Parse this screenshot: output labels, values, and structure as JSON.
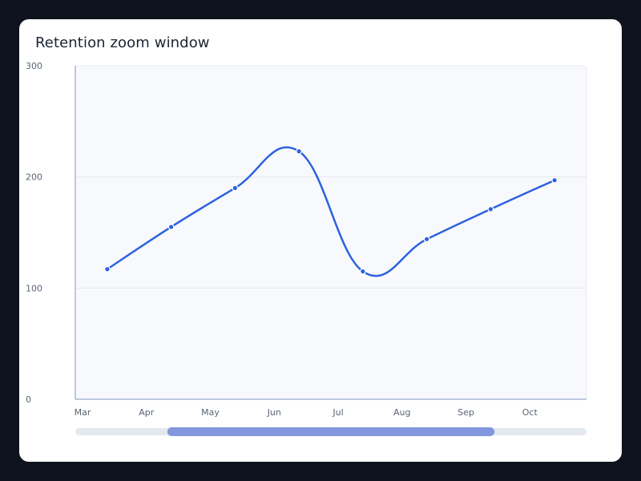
{
  "card": {
    "title": "Retention zoom window"
  },
  "chart_data": {
    "type": "line",
    "title": "Retention zoom window",
    "xlabel": "",
    "ylabel": "",
    "x_tick_labels": [
      "Mar",
      "Apr",
      "May",
      "Jun",
      "Jul",
      "Aug",
      "Sep",
      "Oct"
    ],
    "categories": [
      "Mar",
      "Apr",
      "May",
      "Jun",
      "Jul",
      "Aug",
      "Sep",
      "Oct"
    ],
    "series": [
      {
        "values": [
          117,
          155,
          190,
          223,
          115,
          144,
          171,
          197
        ]
      }
    ],
    "ylim": [
      0,
      300
    ],
    "y_ticks": [
      0,
      100,
      200,
      300
    ],
    "grid": true,
    "smooth": true,
    "zoom_window": {
      "start": 0.18,
      "end": 0.82
    },
    "colors": {
      "line": "#2c62de",
      "plot_bg": "#f8f9fc",
      "axis": "#a8b7d6",
      "grid": "#e5e8ef",
      "slider_track": "#e4e8ef",
      "slider_window": "#8297de"
    }
  }
}
